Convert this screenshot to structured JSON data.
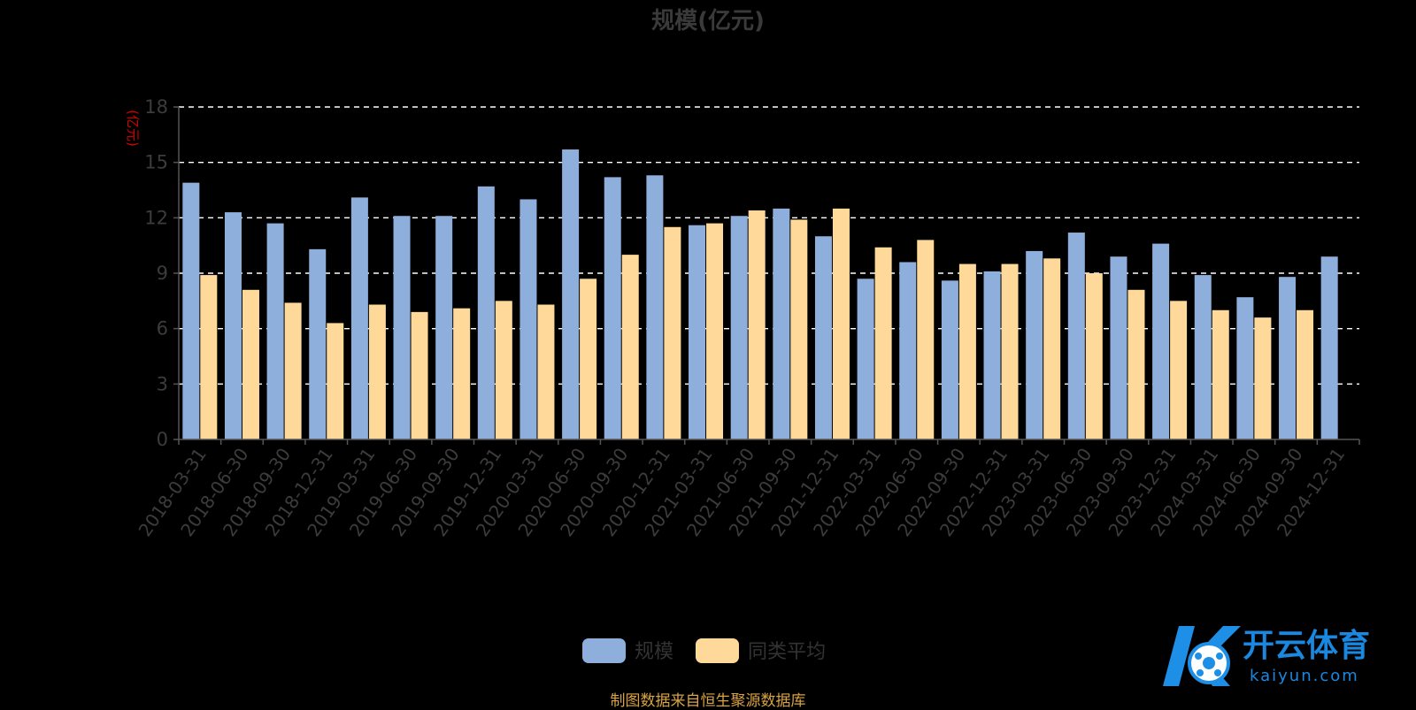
{
  "chart_data": {
    "type": "bar",
    "title": "规模(亿元)",
    "ylabel": "(亿元)",
    "ylim": [
      0,
      18
    ],
    "yticks": [
      0,
      3,
      6,
      9,
      12,
      15,
      18
    ],
    "grid": true,
    "legend_position": "bottom-center",
    "categories": [
      "2018-03-31",
      "2018-06-30",
      "2018-09-30",
      "2018-12-31",
      "2019-03-31",
      "2019-06-30",
      "2019-09-30",
      "2019-12-31",
      "2020-03-31",
      "2020-06-30",
      "2020-09-30",
      "2020-12-31",
      "2021-03-31",
      "2021-06-30",
      "2021-09-30",
      "2021-12-31",
      "2022-03-31",
      "2022-06-30",
      "2022-09-30",
      "2022-12-31",
      "2023-03-31",
      "2023-06-30",
      "2023-09-30",
      "2023-12-31",
      "2024-03-31",
      "2024-06-30",
      "2024-09-30",
      "2024-12-31"
    ],
    "series": [
      {
        "name": "规模",
        "color": "#8eaedc",
        "values": [
          13.9,
          12.3,
          11.7,
          10.3,
          13.1,
          12.1,
          12.1,
          13.7,
          13.0,
          15.7,
          14.2,
          14.3,
          11.6,
          12.1,
          12.5,
          11.0,
          8.7,
          9.6,
          8.6,
          9.1,
          10.2,
          11.2,
          9.9,
          10.6,
          8.9,
          7.7,
          8.8,
          9.9
        ]
      },
      {
        "name": "同类平均",
        "color": "#ffd99a",
        "values": [
          8.9,
          8.1,
          7.4,
          6.3,
          7.3,
          6.9,
          7.1,
          7.5,
          7.3,
          8.7,
          10.0,
          11.5,
          11.7,
          12.4,
          11.9,
          12.5,
          10.4,
          10.8,
          9.5,
          9.5,
          9.8,
          9.0,
          8.1,
          7.5,
          7.0,
          6.6,
          7.0,
          null
        ]
      }
    ]
  },
  "source_note": "制图数据来自恒生聚源数据库",
  "watermark": {
    "cn": "开云体育",
    "en": "kaiyun.com"
  }
}
